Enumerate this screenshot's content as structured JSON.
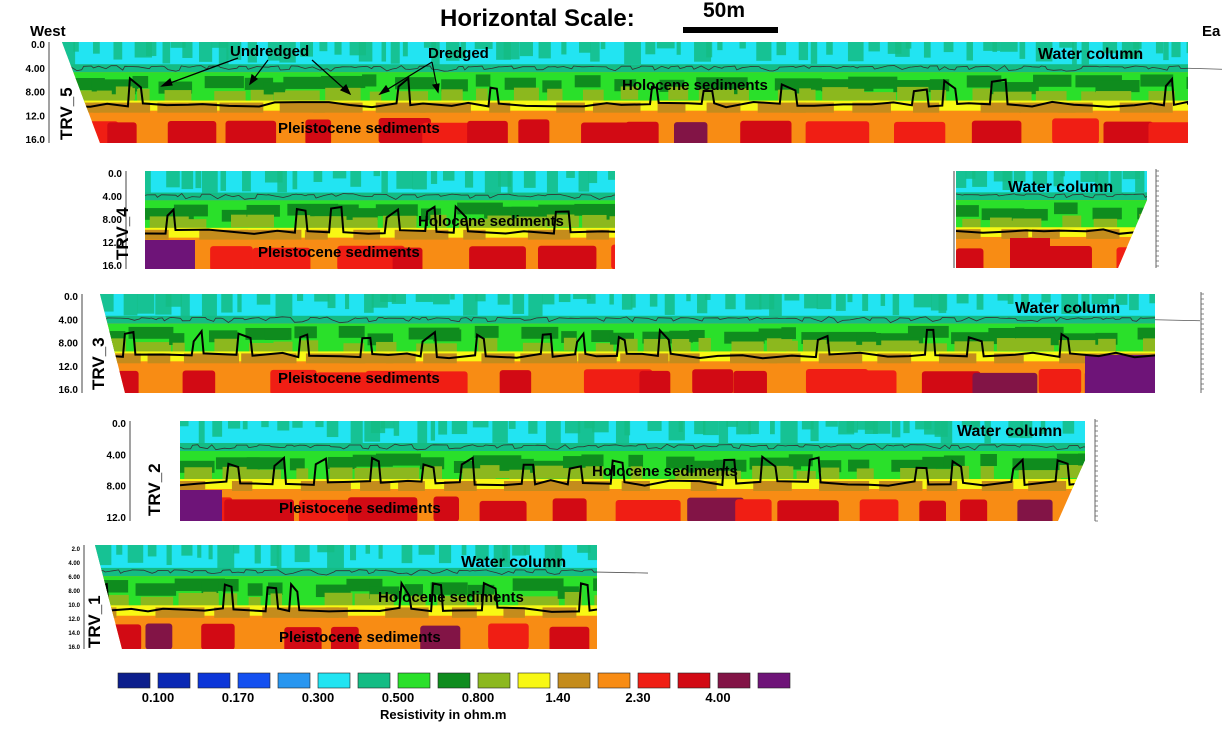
{
  "header": {
    "title": "Horizontal Scale:",
    "scale_value": "50m",
    "west": "West",
    "east": "Ea"
  },
  "depth_ticks": {
    "standard": [
      "0.0",
      "4.00",
      "8.00",
      "12.0",
      "16.0"
    ],
    "trv2": [
      "0.0",
      "4.00",
      "8.00",
      "12.0"
    ],
    "trv1": [
      "2.0",
      "4.00",
      "6.00",
      "8.00",
      "10.0",
      "12.0",
      "14.0",
      "16.0"
    ]
  },
  "profiles": [
    {
      "id": "TRV_5",
      "labels": {
        "undredged": "Undredged",
        "dredged": "Dredged",
        "water": "Water column",
        "holocene": "Holocene sediments",
        "pleistocene": "Pleistocene sediments"
      }
    },
    {
      "id": "TRV_4",
      "labels": {
        "water": "Water column",
        "holocene": "Holocene sediments",
        "pleistocene": "Pleistocene sediments"
      }
    },
    {
      "id": "TRV_3",
      "labels": {
        "water": "Water column",
        "pleistocene": "Pleistocene sediments"
      }
    },
    {
      "id": "TRV_2",
      "labels": {
        "water": "Water column",
        "holocene": "Holocene sediments",
        "pleistocene": "Pleistocene sediments"
      }
    },
    {
      "id": "TRV_1",
      "labels": {
        "water": "Water column",
        "holocene": "Holocene sediments",
        "pleistocene": "Pleistocene sediments"
      }
    }
  ],
  "colors": {
    "water": "#22e4f2",
    "teal": "#14bc84",
    "green": "#2ae02a",
    "darkgreen": "#0f8c1e",
    "olive": "#8cb81e",
    "yellow": "#f8f814",
    "brown": "#c48c1c",
    "orange": "#f88c14",
    "red": "#f01e14",
    "darkred": "#d20a14",
    "maroon": "#821446",
    "purple": "#6e1478"
  },
  "legend": {
    "title": "Resistivity in ohm.m",
    "swatches": [
      "#0c1e8c",
      "#0a28b4",
      "#0c36d8",
      "#1450f0",
      "#2896f0",
      "#22e4f2",
      "#14bc84",
      "#2ae02a",
      "#0f8c1e",
      "#8cb81e",
      "#f8f814",
      "#c48c1c",
      "#f88c14",
      "#f01e14",
      "#d20a14",
      "#821446",
      "#6e1478"
    ],
    "values": [
      "0.100",
      "0.170",
      "0.300",
      "0.500",
      "0.800",
      "1.40",
      "2.30",
      "4.00"
    ]
  }
}
